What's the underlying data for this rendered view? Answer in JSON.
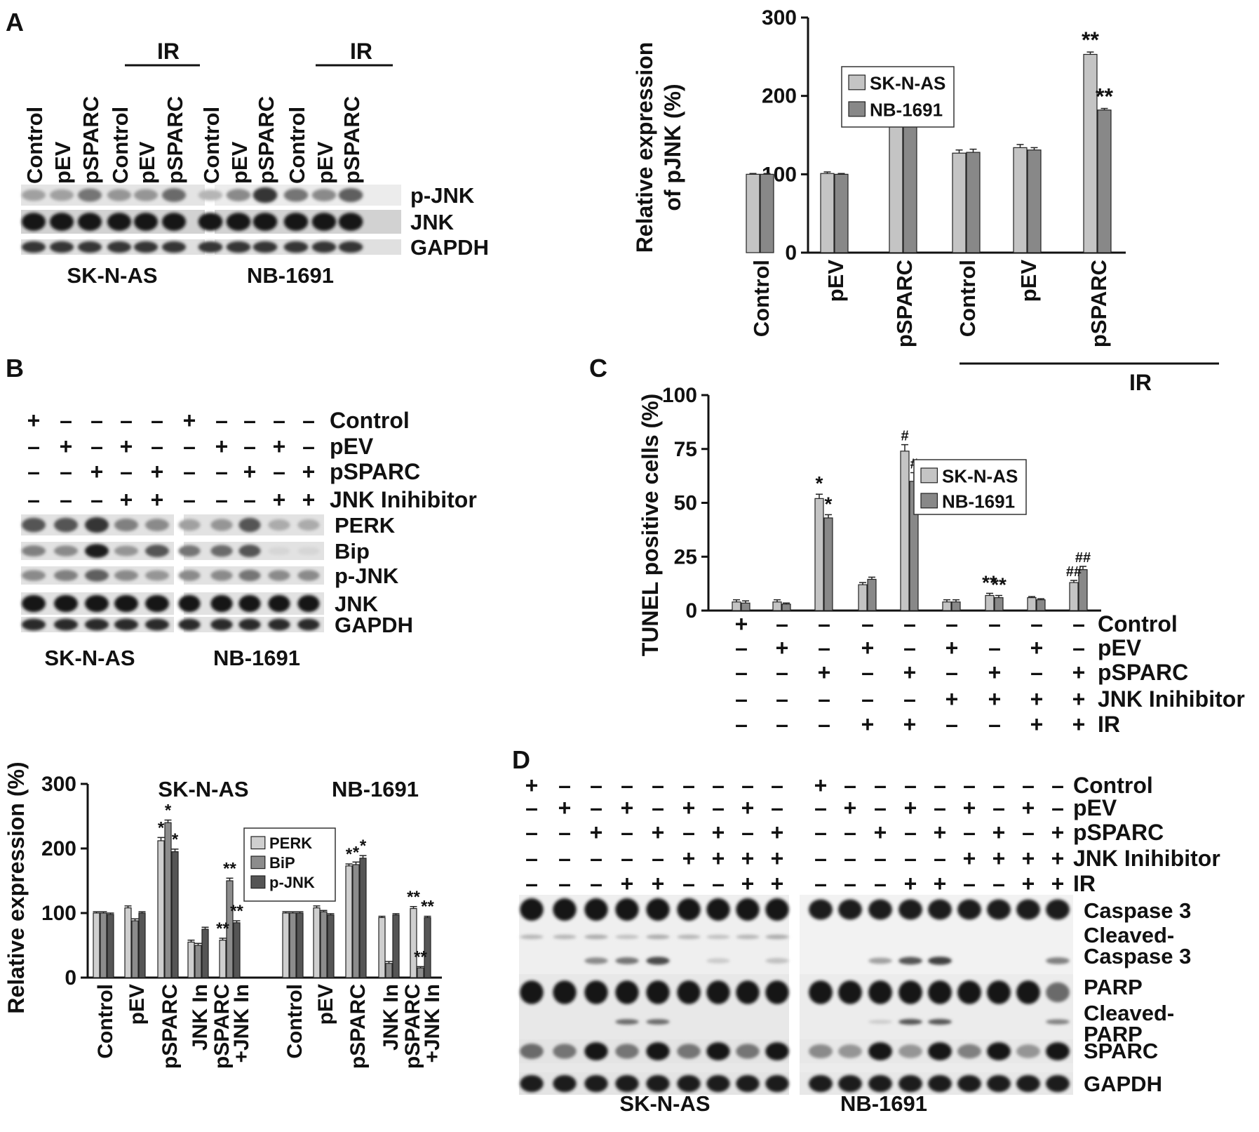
{
  "panel_letters": {
    "a": "A",
    "b": "B",
    "c": "C",
    "d": "D"
  },
  "panel_a_blot": {
    "ir_label": "IR",
    "lanes": [
      "Control",
      "pEV",
      "pSPARC",
      "Control",
      "pEV",
      "pSPARC",
      "Control",
      "pEV",
      "pSPARC",
      "Control",
      "pEV",
      "pSPARC"
    ],
    "rows": [
      "p-JNK",
      "JNK",
      "GAPDH"
    ],
    "cells": [
      "SK-N-AS",
      "NB-1691"
    ]
  },
  "panel_b_blot": {
    "conditions": [
      "Control",
      "pEV",
      "pSPARC",
      "JNK Inihibitor"
    ],
    "signs": [
      [
        "+",
        "–",
        "–",
        "–",
        "–",
        "+",
        "–",
        "–",
        "–",
        "–"
      ],
      [
        "–",
        "+",
        "–",
        "+",
        "–",
        "–",
        "+",
        "–",
        "+",
        "–"
      ],
      [
        "–",
        "–",
        "+",
        "–",
        "+",
        "–",
        "–",
        "+",
        "–",
        "+"
      ],
      [
        "–",
        "–",
        "–",
        "+",
        "+",
        "–",
        "–",
        "–",
        "+",
        "+"
      ]
    ],
    "rows": [
      "PERK",
      "Bip",
      "p-JNK",
      "JNK",
      "GAPDH"
    ],
    "cells": [
      "SK-N-AS",
      "NB-1691"
    ]
  },
  "panel_c_conditions": {
    "labels": [
      "Control",
      "pEV",
      "pSPARC",
      "JNK Inihibitor",
      "IR"
    ],
    "signs": [
      [
        "+",
        "–",
        "–",
        "–",
        "–",
        "–",
        "–",
        "–",
        "–"
      ],
      [
        "–",
        "+",
        "–",
        "+",
        "–",
        "+",
        "–",
        "+",
        "–"
      ],
      [
        "–",
        "–",
        "+",
        "–",
        "+",
        "–",
        "+",
        "–",
        "+"
      ],
      [
        "–",
        "–",
        "–",
        "–",
        "–",
        "+",
        "+",
        "+",
        "+"
      ],
      [
        "–",
        "–",
        "–",
        "+",
        "+",
        "–",
        "–",
        "+",
        "+"
      ]
    ]
  },
  "panel_d_blot": {
    "conditions": [
      "Control",
      "pEV",
      "pSPARC",
      "JNK Inihibitor",
      "IR"
    ],
    "signs": [
      [
        "+",
        "–",
        "–",
        "–",
        "–",
        "–",
        "–",
        "–",
        "–"
      ],
      [
        "–",
        "+",
        "–",
        "+",
        "–",
        "+",
        "–",
        "+",
        "–"
      ],
      [
        "–",
        "–",
        "+",
        "–",
        "+",
        "–",
        "+",
        "–",
        "+"
      ],
      [
        "–",
        "–",
        "–",
        "–",
        "–",
        "+",
        "+",
        "+",
        "+"
      ],
      [
        "–",
        "–",
        "–",
        "+",
        "+",
        "–",
        "–",
        "+",
        "+"
      ]
    ],
    "rows": [
      "Caspase 3",
      "Cleaved-\nCaspase 3",
      "PARP",
      "Cleaved-\nPARP",
      "SPARC",
      "GAPDH"
    ],
    "cells": [
      "SK-N-AS",
      "NB-1691"
    ]
  },
  "chart_data": [
    {
      "id": "pjnk",
      "type": "bar",
      "ylabel": "Relative  expression\nof pJNK (%)",
      "ylim": [
        0,
        300
      ],
      "yticks": [
        0,
        100,
        200,
        300
      ],
      "categories": [
        "Control",
        "pEV",
        "pSPARC",
        "Control",
        "pEV",
        "pSPARC"
      ],
      "group_label": "IR",
      "series": [
        {
          "name": "SK-N-AS",
          "values": [
            100,
            101,
            208,
            127,
            134,
            253
          ],
          "errors": [
            1,
            2,
            4,
            4,
            4,
            3
          ]
        },
        {
          "name": "NB-1691",
          "values": [
            100,
            100,
            180,
            128,
            131,
            182
          ],
          "errors": [
            1,
            1,
            4,
            4,
            3,
            2
          ]
        }
      ],
      "annotations": [
        "",
        "",
        "*|*",
        "",
        "",
        "**|**"
      ],
      "legend": "top-left"
    },
    {
      "id": "tunel",
      "type": "bar",
      "ylabel": "TUNEL positive cells (%)",
      "ylim": [
        0,
        100
      ],
      "yticks": [
        0,
        25,
        50,
        75,
        100
      ],
      "series": [
        {
          "name": "SK-N-AS",
          "values": [
            4,
            4,
            52,
            12,
            74,
            4,
            7,
            6,
            13
          ],
          "errors": [
            1,
            1,
            2,
            1,
            3,
            1,
            1,
            0.5,
            1
          ]
        },
        {
          "name": "NB-1691",
          "values": [
            3.5,
            3,
            43,
            14.5,
            60,
            4,
            6,
            5,
            19
          ],
          "errors": [
            1,
            0.5,
            1.5,
            1,
            4,
            1,
            1,
            0.5,
            1.5
          ]
        }
      ],
      "annotations": [
        "",
        "",
        "*|*",
        "",
        "#|#",
        "",
        "**|**",
        "",
        "##|##"
      ],
      "legend": "top-right"
    },
    {
      "id": "er",
      "type": "bar",
      "ylabel": "Relative expression (%)",
      "ylim": [
        0,
        300
      ],
      "yticks": [
        0,
        100,
        200,
        300
      ],
      "groups": [
        "SK-N-AS",
        "NB-1691"
      ],
      "categories": [
        "Control",
        "pEV",
        "pSPARC",
        "JNK In",
        "pSPARC\n+JNK In",
        "Control",
        "pEV",
        "pSPARC",
        "JNK In",
        "pSPARC\n+JNK In"
      ],
      "series": [
        {
          "name": "PERK",
          "values": [
            100,
            108,
            212,
            55,
            58,
            100,
            108,
            173,
            93,
            107
          ],
          "errors": [
            2,
            3,
            5,
            3,
            3,
            2,
            3,
            3,
            2,
            3
          ]
        },
        {
          "name": "BiP",
          "values": [
            100,
            88,
            240,
            50,
            150,
            100,
            102,
            175,
            22,
            15
          ],
          "errors": [
            2,
            3,
            4,
            3,
            4,
            2,
            2,
            4,
            3,
            2
          ]
        },
        {
          "name": "p-JNK",
          "values": [
            98,
            100,
            195,
            75,
            85,
            100,
            97,
            185,
            97,
            93
          ],
          "errors": [
            2,
            2,
            4,
            3,
            3,
            2,
            2,
            4,
            2,
            2
          ]
        }
      ],
      "annotations": [
        "",
        "",
        "*|*|*",
        "",
        "**|**|**",
        "",
        "",
        "*|*|*",
        "",
        "**|**|**"
      ],
      "legend": "top-right"
    }
  ]
}
